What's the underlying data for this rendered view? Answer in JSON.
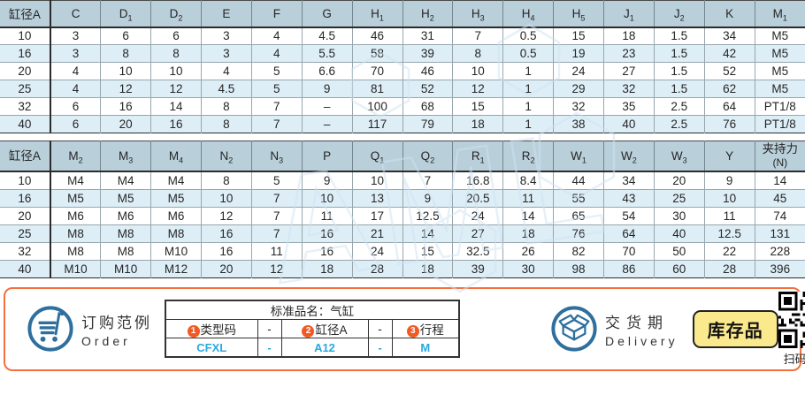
{
  "colors": {
    "header-bg": "#b9cfda",
    "stripe-bg": "#ddeef7",
    "panel-border": "#f4713f",
    "icon-blue": "#2e6f9e",
    "value-blue": "#29a9e1",
    "badge-orange": "#f15a24",
    "badge-yellow": "#fbe98d"
  },
  "tables": [
    {
      "name": "cylinder-dimensions-1",
      "headers": [
        {
          "text": "缸径A"
        },
        {
          "text": "C"
        },
        {
          "main": "D",
          "sub": "1"
        },
        {
          "main": "D",
          "sub": "2"
        },
        {
          "text": "E"
        },
        {
          "text": "F"
        },
        {
          "text": "G"
        },
        {
          "main": "H",
          "sub": "1"
        },
        {
          "main": "H",
          "sub": "2"
        },
        {
          "main": "H",
          "sub": "3"
        },
        {
          "main": "H",
          "sub": "4"
        },
        {
          "main": "H",
          "sub": "5"
        },
        {
          "main": "J",
          "sub": "1"
        },
        {
          "main": "J",
          "sub": "2"
        },
        {
          "text": "K"
        },
        {
          "main": "M",
          "sub": "1"
        }
      ],
      "rows": [
        [
          "10",
          "3",
          "6",
          "6",
          "3",
          "4",
          "4.5",
          "46",
          "31",
          "7",
          "0.5",
          "15",
          "18",
          "1.5",
          "34",
          "M5"
        ],
        [
          "16",
          "3",
          "8",
          "8",
          "3",
          "4",
          "5.5",
          "58",
          "39",
          "8",
          "0.5",
          "19",
          "23",
          "1.5",
          "42",
          "M5"
        ],
        [
          "20",
          "4",
          "10",
          "10",
          "4",
          "5",
          "6.6",
          "70",
          "46",
          "10",
          "1",
          "24",
          "27",
          "1.5",
          "52",
          "M5"
        ],
        [
          "25",
          "4",
          "12",
          "12",
          "4.5",
          "5",
          "9",
          "81",
          "52",
          "12",
          "1",
          "29",
          "32",
          "1.5",
          "62",
          "M5"
        ],
        [
          "32",
          "6",
          "16",
          "14",
          "8",
          "7",
          "–",
          "100",
          "68",
          "15",
          "1",
          "32",
          "35",
          "2.5",
          "64",
          "PT1/8"
        ],
        [
          "40",
          "6",
          "20",
          "16",
          "8",
          "7",
          "–",
          "117",
          "79",
          "18",
          "1",
          "38",
          "40",
          "2.5",
          "76",
          "PT1/8"
        ]
      ]
    },
    {
      "name": "cylinder-dimensions-2",
      "headers": [
        {
          "text": "缸径A"
        },
        {
          "main": "M",
          "sub": "2"
        },
        {
          "main": "M",
          "sub": "3"
        },
        {
          "main": "M",
          "sub": "4"
        },
        {
          "main": "N",
          "sub": "2"
        },
        {
          "main": "N",
          "sub": "3"
        },
        {
          "text": "P"
        },
        {
          "main": "Q",
          "sub": "1"
        },
        {
          "main": "Q",
          "sub": "2"
        },
        {
          "main": "R",
          "sub": "1"
        },
        {
          "main": "R",
          "sub": "2"
        },
        {
          "main": "W",
          "sub": "1"
        },
        {
          "main": "W",
          "sub": "2"
        },
        {
          "main": "W",
          "sub": "3"
        },
        {
          "text": "Y"
        },
        {
          "text": "夹持力",
          "line2": "(N)"
        }
      ],
      "rows": [
        [
          "10",
          "M4",
          "M4",
          "M4",
          "8",
          "5",
          "9",
          "10",
          "7",
          "16.8",
          "8.4",
          "44",
          "34",
          "20",
          "9",
          "14"
        ],
        [
          "16",
          "M5",
          "M5",
          "M5",
          "10",
          "7",
          "10",
          "13",
          "9",
          "20.5",
          "11",
          "55",
          "43",
          "25",
          "10",
          "45"
        ],
        [
          "20",
          "M6",
          "M6",
          "M6",
          "12",
          "7",
          "11",
          "17",
          "12.5",
          "24",
          "14",
          "65",
          "54",
          "30",
          "11",
          "74"
        ],
        [
          "25",
          "M8",
          "M8",
          "M8",
          "16",
          "7",
          "16",
          "21",
          "14",
          "27",
          "18",
          "76",
          "64",
          "40",
          "12.5",
          "131"
        ],
        [
          "32",
          "M8",
          "M8",
          "M10",
          "16",
          "11",
          "16",
          "24",
          "15",
          "32.5",
          "26",
          "82",
          "70",
          "50",
          "22",
          "228"
        ],
        [
          "40",
          "M10",
          "M10",
          "M12",
          "20",
          "12",
          "18",
          "28",
          "18",
          "39",
          "30",
          "98",
          "86",
          "60",
          "28",
          "396"
        ]
      ]
    }
  ],
  "order": {
    "title_zh": "订购范例",
    "title_en": "Order",
    "product_name": "标准品名：气缸",
    "code_parts": [
      {
        "badge": "1",
        "label": "类型码",
        "value": "CFXL"
      },
      {
        "sep": "-"
      },
      {
        "badge": "2",
        "label": "缸径A",
        "value": "A12"
      },
      {
        "sep": "-"
      },
      {
        "badge": "3",
        "label": "行程",
        "value": "M"
      }
    ]
  },
  "delivery": {
    "title_zh": "交货期",
    "title_en": "Delivery",
    "stock_label": "库存品"
  },
  "qr": {
    "caption": "扫码查价"
  }
}
